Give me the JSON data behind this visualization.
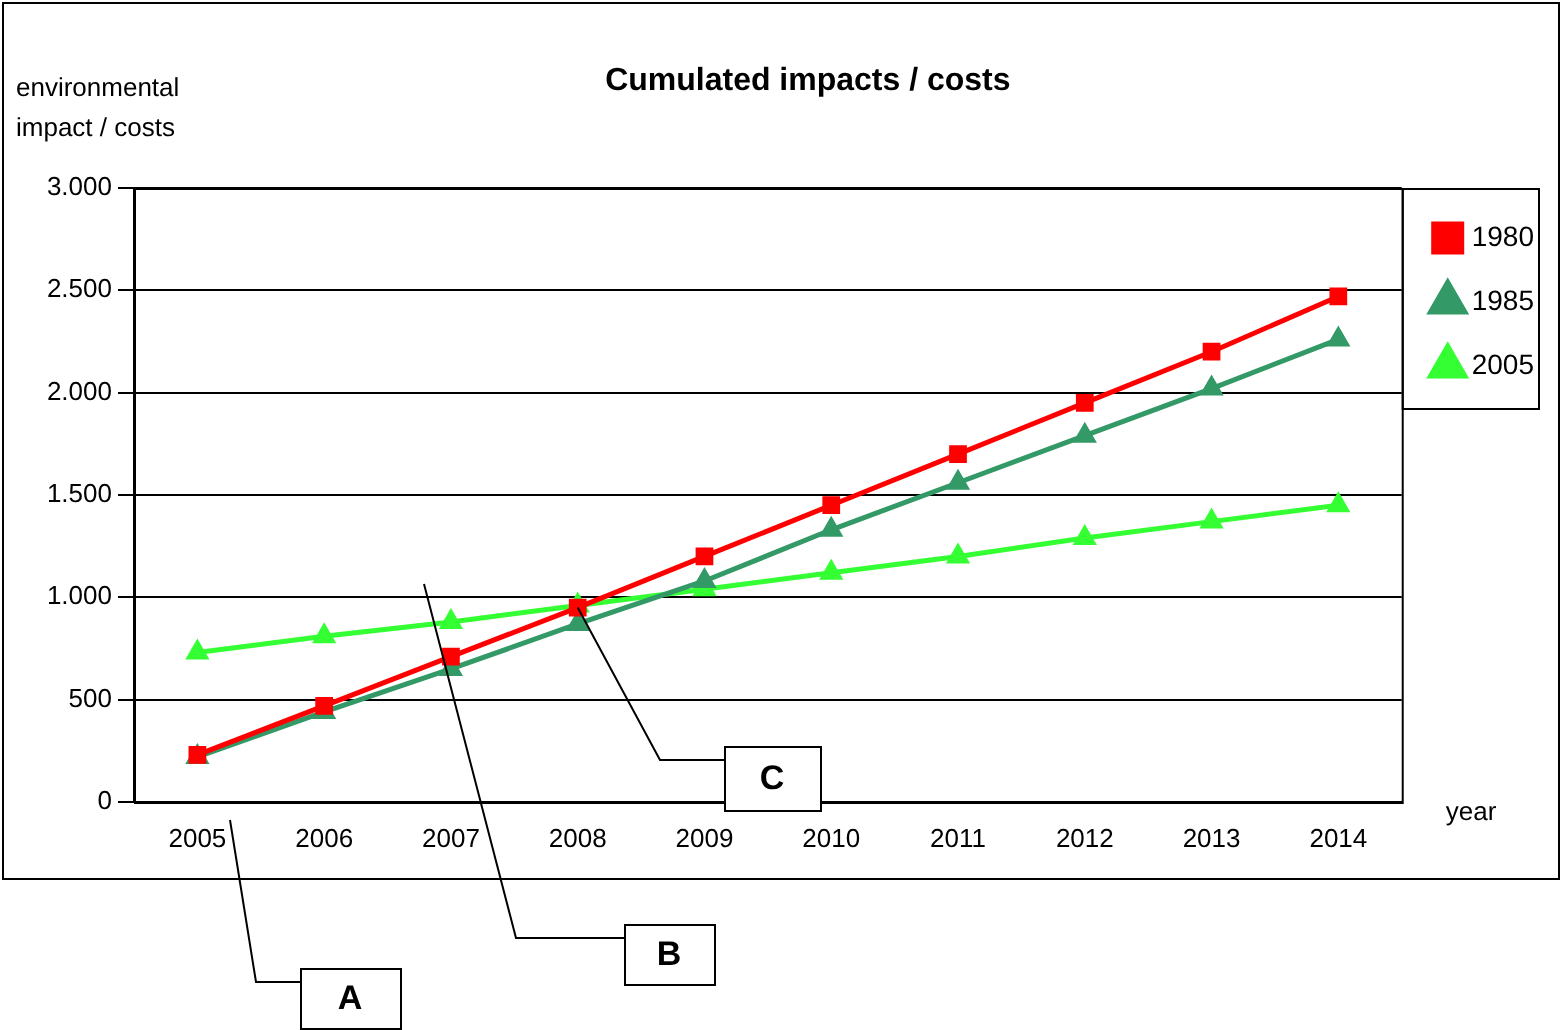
{
  "chart_data": {
    "type": "line",
    "title": "Cumulated impacts / costs",
    "ylabel": "environmental impact / costs",
    "xlabel": "year",
    "categories": [
      "2005",
      "2006",
      "2007",
      "2008",
      "2009",
      "2010",
      "2011",
      "2012",
      "2013",
      "2014"
    ],
    "series": [
      {
        "name": "1980",
        "color": "#ff0000",
        "marker": "square",
        "values": [
          230,
          470,
          710,
          950,
          1200,
          1450,
          1700,
          1950,
          2200,
          2470
        ]
      },
      {
        "name": "1985",
        "color": "#339966",
        "marker": "triangle",
        "values": [
          220,
          440,
          650,
          870,
          1080,
          1330,
          1560,
          1790,
          2020,
          2260
        ]
      },
      {
        "name": "2005",
        "color": "#33ff33",
        "marker": "triangle",
        "values": [
          730,
          810,
          880,
          960,
          1040,
          1120,
          1200,
          1290,
          1370,
          1450
        ]
      }
    ],
    "ylim": [
      0,
      3000
    ],
    "yticks": [
      {
        "value": 0,
        "label": "0"
      },
      {
        "value": 500,
        "label": "500"
      },
      {
        "value": 1000,
        "label": "1.000"
      },
      {
        "value": 1500,
        "label": "1.500"
      },
      {
        "value": 2000,
        "label": "2.000"
      },
      {
        "value": 2500,
        "label": "2.500"
      },
      {
        "value": 3000,
        "label": "3.000"
      }
    ],
    "grid": "y",
    "legend": "top right",
    "line_style": "solid",
    "annotations": [
      "A",
      "B",
      {
        "text": "C",
        "x": "2008",
        "y": 950
      }
    ]
  }
}
